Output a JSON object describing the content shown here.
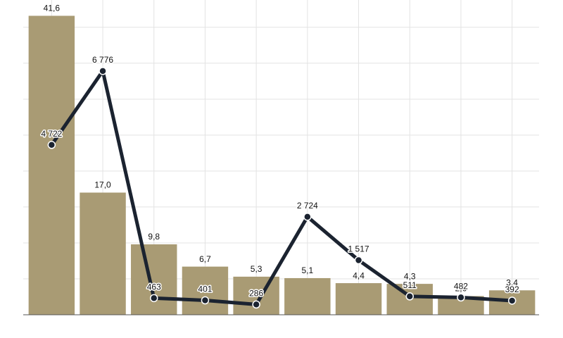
{
  "chart_data": {
    "type": "bar",
    "categories": [
      null,
      null,
      null,
      null,
      null,
      null,
      null,
      null,
      null,
      null
    ],
    "series": [
      {
        "type": "bar",
        "color": "#a99b74",
        "values": [
          41.6,
          17.0,
          9.8,
          6.7,
          5.3,
          5.1,
          4.4,
          4.3,
          2.6,
          3.4
        ],
        "value_labels": [
          "41,6",
          "17,0",
          "9,8",
          "6,7",
          "5,3",
          "5,1",
          "4,4",
          "4,3",
          "2,6",
          "3,4"
        ]
      },
      {
        "type": "line",
        "axis": "y2",
        "color": "#1b2330",
        "values": [
          4722,
          6776,
          463,
          401,
          286,
          2724,
          1517,
          511,
          482,
          392
        ],
        "value_labels": [
          "4 722",
          "6 776",
          "463",
          "401",
          "286",
          "2 724",
          "1 517",
          "511",
          "482",
          "392"
        ]
      }
    ],
    "ylim": [
      0,
      43.8
    ],
    "yticks": [
      0,
      5,
      10,
      15,
      20,
      25,
      30,
      35,
      40
    ],
    "y2lim": [
      0,
      8750
    ],
    "grid": true
  }
}
